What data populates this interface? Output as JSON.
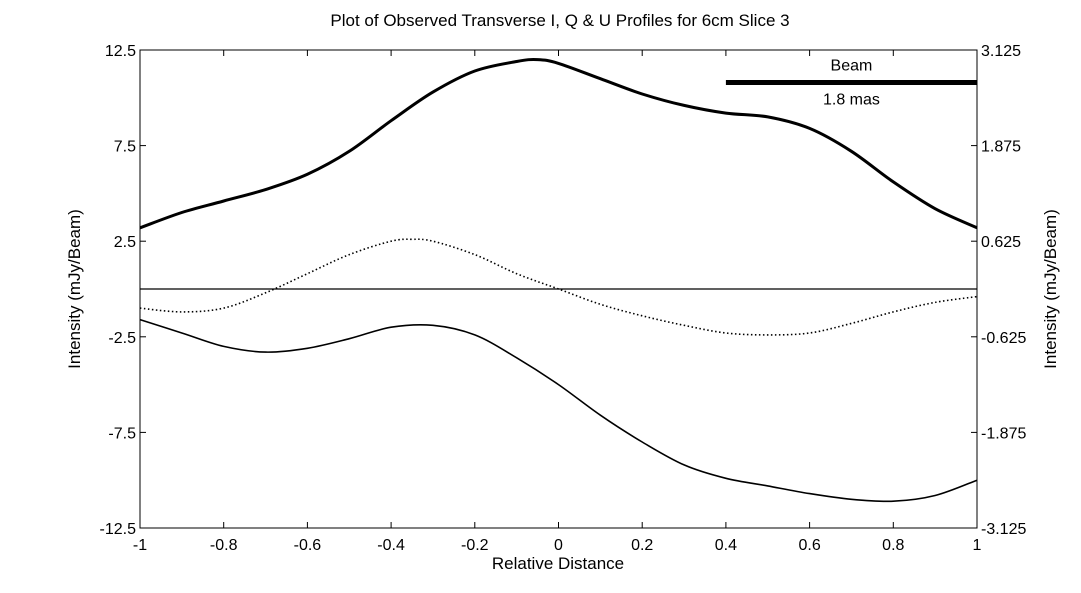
{
  "chart_data": {
    "type": "line",
    "title": "Plot of Observed Transverse I, Q & U Profiles for 6cm Slice 3",
    "xlabel": "Relative Distance",
    "ylabel_left": "Intensity (mJy/Beam)",
    "ylabel_right": "Intensity (mJy/Beam)",
    "xlim": [
      -1,
      1
    ],
    "ylim_left": [
      -12.5,
      12.5
    ],
    "ylim_right": [
      -3.125,
      3.125
    ],
    "xticks": [
      -1,
      -0.8,
      -0.6,
      -0.4,
      -0.2,
      0,
      0.2,
      0.4,
      0.6,
      0.8,
      1
    ],
    "xtick_labels": [
      "-1",
      "-0.8",
      "-0.6",
      "-0.4",
      "-0.2",
      "0",
      "0.2",
      "0.4",
      "0.6",
      "0.8",
      "1"
    ],
    "yticks_left": [
      12.5,
      7.5,
      2.5,
      -2.5,
      -7.5,
      -12.5
    ],
    "ytick_labels_left": [
      "12.5",
      "7.5",
      "2.5",
      "-2.5",
      "-7.5",
      "-12.5"
    ],
    "ytick_labels_right": [
      "3.125",
      "1.875",
      "0.625",
      "-0.625",
      "-1.875",
      "-3.125"
    ],
    "zero_line": 0,
    "beam": {
      "label": "Beam",
      "size_label": "1.8 mas",
      "x_start": 0.4,
      "x_end": 1.0,
      "y": 10.8
    },
    "series": [
      {
        "name": "I",
        "style": "solid-thick",
        "x": [
          -1,
          -0.9,
          -0.8,
          -0.7,
          -0.6,
          -0.5,
          -0.4,
          -0.3,
          -0.2,
          -0.1,
          -0.05,
          0,
          0.1,
          0.2,
          0.3,
          0.4,
          0.5,
          0.6,
          0.7,
          0.8,
          0.9,
          1.0
        ],
        "y": [
          3.2,
          4.0,
          4.6,
          5.2,
          6.0,
          7.2,
          8.8,
          10.3,
          11.4,
          11.9,
          12.0,
          11.8,
          11.0,
          10.2,
          9.6,
          9.2,
          9.0,
          8.4,
          7.2,
          5.6,
          4.2,
          3.2
        ]
      },
      {
        "name": "Q",
        "style": "dotted",
        "x": [
          -1,
          -0.9,
          -0.8,
          -0.7,
          -0.6,
          -0.5,
          -0.4,
          -0.35,
          -0.3,
          -0.2,
          -0.1,
          0,
          0.1,
          0.2,
          0.3,
          0.4,
          0.5,
          0.6,
          0.7,
          0.8,
          0.9,
          1.0
        ],
        "y": [
          -1.0,
          -1.2,
          -1.0,
          -0.2,
          0.8,
          1.8,
          2.5,
          2.6,
          2.5,
          1.8,
          0.8,
          0.0,
          -0.8,
          -1.4,
          -1.9,
          -2.3,
          -2.4,
          -2.3,
          -1.8,
          -1.2,
          -0.7,
          -0.4
        ]
      },
      {
        "name": "U",
        "style": "solid",
        "x": [
          -1,
          -0.9,
          -0.8,
          -0.7,
          -0.6,
          -0.5,
          -0.4,
          -0.3,
          -0.2,
          -0.1,
          0,
          0.1,
          0.2,
          0.3,
          0.4,
          0.5,
          0.6,
          0.7,
          0.8,
          0.9,
          1.0
        ],
        "y": [
          -1.6,
          -2.3,
          -3.0,
          -3.3,
          -3.1,
          -2.6,
          -2.0,
          -1.9,
          -2.4,
          -3.6,
          -5.0,
          -6.6,
          -8.0,
          -9.2,
          -9.9,
          -10.3,
          -10.7,
          -11.0,
          -11.1,
          -10.8,
          -10.0
        ]
      }
    ]
  }
}
